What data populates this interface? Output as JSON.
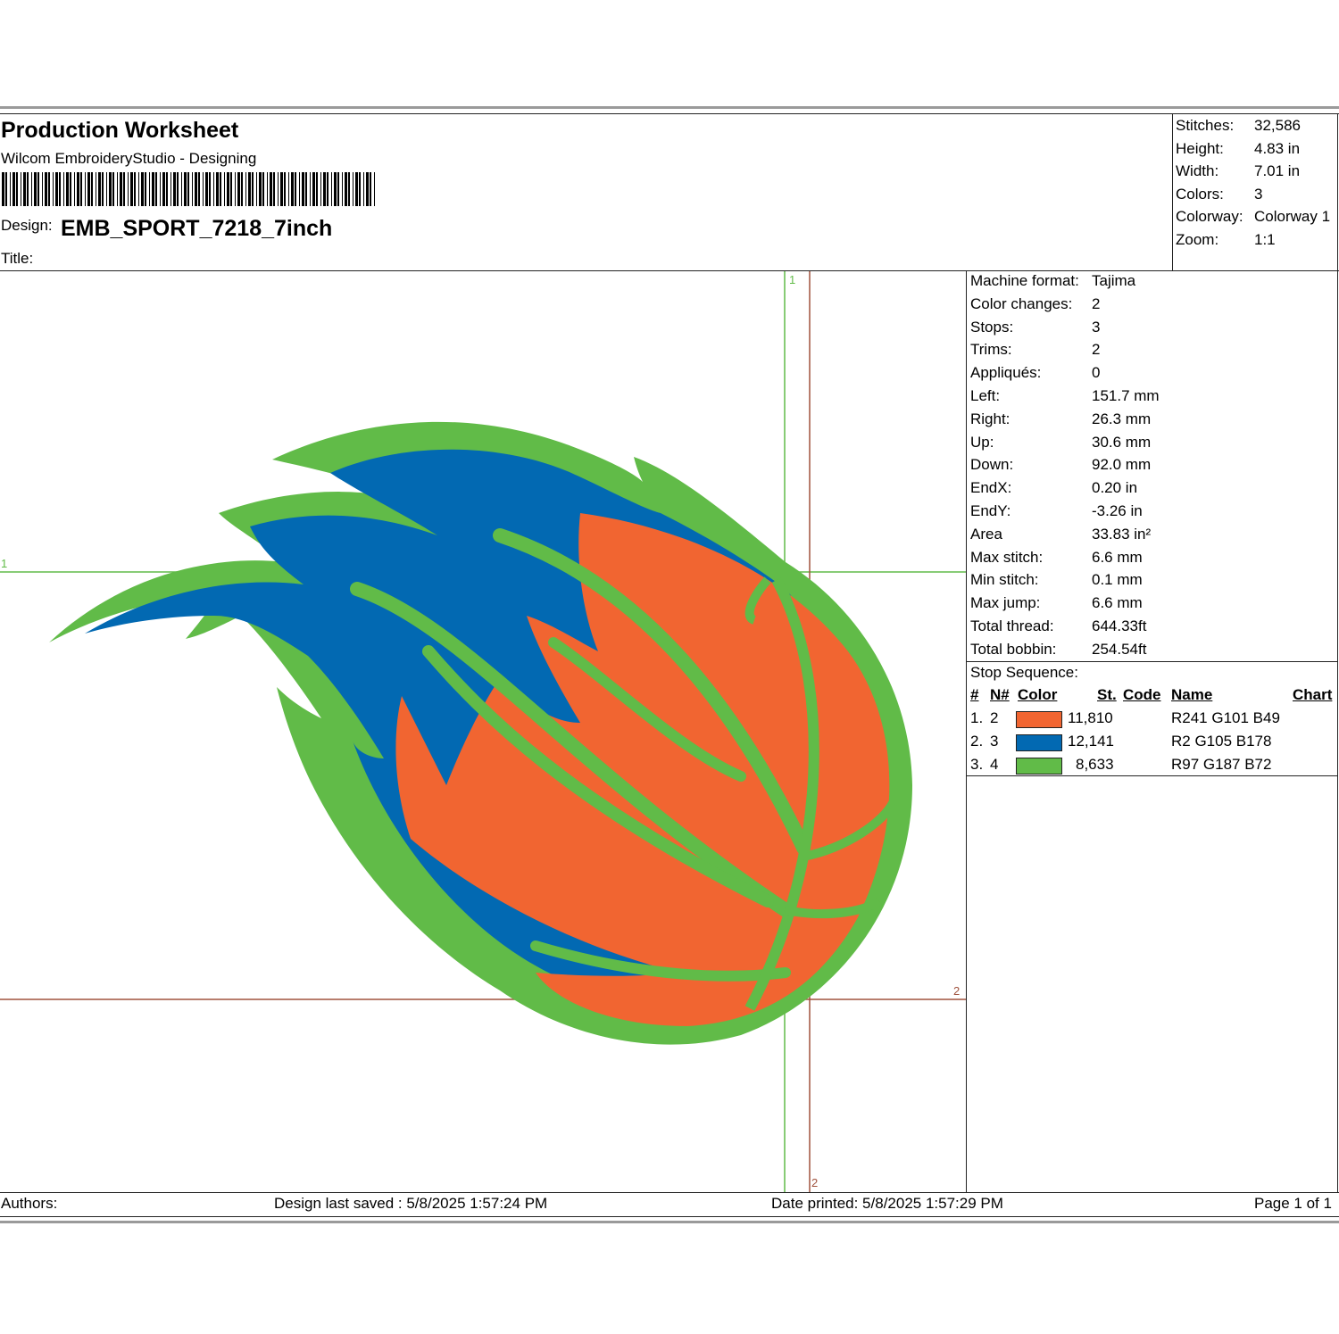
{
  "header": {
    "title": "Production Worksheet",
    "software": "Wilcom EmbroideryStudio - Designing",
    "design_label": "Design:",
    "design_name": "EMB_SPORT_7218_7inch",
    "title_label": "Title:"
  },
  "summary": [
    {
      "label": "Stitches:",
      "value": "32,586"
    },
    {
      "label": "Height:",
      "value": "4.83 in"
    },
    {
      "label": "Width:",
      "value": "7.01 in"
    },
    {
      "label": "Colors:",
      "value": "3"
    },
    {
      "label": "Colorway:",
      "value": "Colorway 1"
    },
    {
      "label": "Zoom:",
      "value": "1:1"
    }
  ],
  "details": [
    {
      "label": "Machine format:",
      "value": "Tajima"
    },
    {
      "label": "Color changes:",
      "value": "2"
    },
    {
      "label": "Stops:",
      "value": "3"
    },
    {
      "label": "Trims:",
      "value": "2"
    },
    {
      "label": "Appliqués:",
      "value": "0"
    },
    {
      "label": "Left:",
      "value": "151.7 mm"
    },
    {
      "label": "Right:",
      "value": "26.3 mm"
    },
    {
      "label": "Up:",
      "value": "30.6 mm"
    },
    {
      "label": "Down:",
      "value": "92.0 mm"
    },
    {
      "label": "EndX:",
      "value": "0.20 in"
    },
    {
      "label": "EndY:",
      "value": "-3.26 in"
    },
    {
      "label": "Area",
      "value": " 33.83 in²"
    },
    {
      "label": "Max stitch:",
      "value": "6.6 mm"
    },
    {
      "label": "Min stitch:",
      "value": "0.1 mm"
    },
    {
      "label": "Max jump:",
      "value": "6.6 mm"
    },
    {
      "label": "Total thread:",
      "value": "644.33ft"
    },
    {
      "label": "Total bobbin:",
      "value": "254.54ft"
    }
  ],
  "stop_sequence": {
    "title": "Stop Sequence:",
    "columns": [
      "#",
      "N#",
      "Color",
      "St.",
      "Code",
      "Name",
      "Chart"
    ],
    "rows": [
      {
        "num": "1.",
        "n": "2",
        "color": "#f16531",
        "stitches": "11,810",
        "name": "R241 G101 B49"
      },
      {
        "num": "2.",
        "n": "3",
        "color": "#0269b2",
        "stitches": "12,141",
        "name": "R2 G105 B178"
      },
      {
        "num": "3.",
        "n": "4",
        "color": "#61bb48",
        "stitches": "8,633",
        "name": "R97 G187 B72"
      }
    ]
  },
  "footer": {
    "authors": "Authors:",
    "saved": "Design last saved : 5/8/2025 1:57:24 PM",
    "printed": "Date printed: 5/8/2025 1:57:29 PM",
    "page": "Page 1 of 1"
  },
  "canvas": {
    "start_marker": "1",
    "end_marker": "2",
    "colors": {
      "ball": "#f16531",
      "flame": "#0269b2",
      "outline": "#61bb48",
      "start_guide": "#61bb48",
      "end_guide": "#a0523d"
    }
  }
}
